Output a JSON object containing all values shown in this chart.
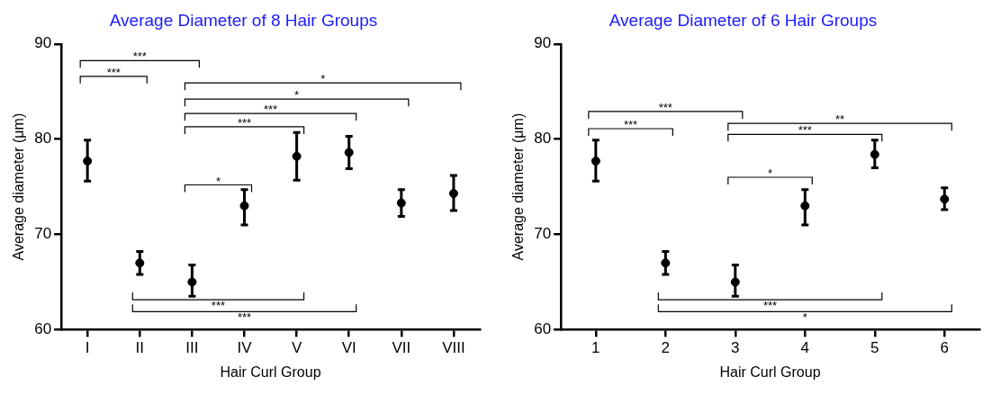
{
  "chart_data": [
    {
      "type": "scatter",
      "title": "Average Diameter of 8 Hair Groups",
      "xlabel": "Hair Curl Group",
      "ylabel": "Average diameter (μm)",
      "categories": [
        "I",
        "II",
        "III",
        "IV",
        "V",
        "VI",
        "VII",
        "VIII"
      ],
      "series": [
        {
          "color": "#000000",
          "values": [
            77.7,
            67.0,
            65.0,
            73.0,
            78.2,
            78.6,
            73.3,
            74.3
          ],
          "errors": [
            [
              75.6,
              79.9
            ],
            [
              65.8,
              68.2
            ],
            [
              63.5,
              66.8
            ],
            [
              71.0,
              74.7
            ],
            [
              75.7,
              80.7
            ],
            [
              76.9,
              80.3
            ],
            [
              71.9,
              74.7
            ],
            [
              72.5,
              76.2
            ]
          ]
        }
      ],
      "ylim": [
        60,
        90
      ],
      "yticks": [
        60,
        70,
        80,
        90
      ],
      "grid": false,
      "legend": false,
      "marker": "circle",
      "annotations": [
        "***",
        "***",
        "*",
        "*",
        "***",
        "***",
        "*",
        "***",
        "***"
      ]
    },
    {
      "type": "scatter",
      "title": "Average Diameter of 6 Hair Groups",
      "xlabel": "Hair Curl Group",
      "ylabel": "Average diameter (μm)",
      "categories": [
        "1",
        "2",
        "3",
        "4",
        "5",
        "6"
      ],
      "series": [
        {
          "color": "#000000",
          "values": [
            77.7,
            67.0,
            65.0,
            73.0,
            78.4,
            73.7
          ],
          "errors": [
            [
              75.6,
              79.9
            ],
            [
              65.8,
              68.2
            ],
            [
              63.5,
              66.8
            ],
            [
              71.0,
              74.7
            ],
            [
              77.0,
              79.9
            ],
            [
              72.6,
              74.9
            ]
          ]
        }
      ],
      "ylim": [
        60,
        90
      ],
      "yticks": [
        60,
        70,
        80,
        90
      ],
      "grid": false,
      "legend": false,
      "marker": "circle",
      "annotations": [
        "***",
        "***",
        "**",
        "***",
        "*",
        "***",
        "*"
      ]
    }
  ]
}
